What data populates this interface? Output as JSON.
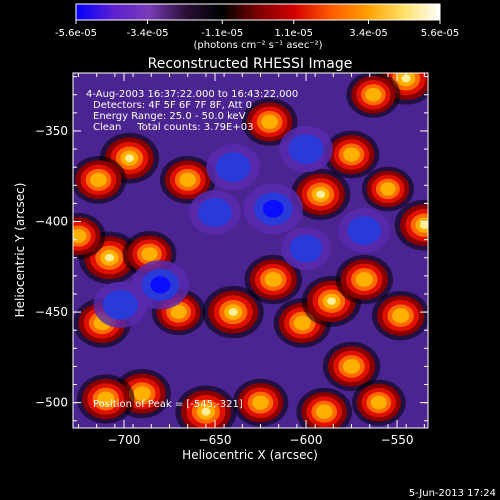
{
  "colorbar": {
    "tick_labels": [
      "-5.6e-05",
      "-3.4e-05",
      "-1.1e-05",
      "1.1e-05",
      "3.4e-05",
      "5.6e-05"
    ],
    "tick_values": [
      -5.6e-05,
      -3.4e-05,
      -1.1e-05,
      1.1e-05,
      3.4e-05,
      5.6e-05
    ],
    "range": [
      -5.6e-05,
      5.6e-05
    ],
    "units_label": "(photons cm⁻² s⁻¹ asec⁻²)",
    "colormap": [
      "#0000ff",
      "#5a1fd0",
      "#7a3cb8",
      "#2a1038",
      "#000000",
      "#7a0000",
      "#d40000",
      "#ff5a00",
      "#ff9e00",
      "#ffe066",
      "#ffffff"
    ]
  },
  "chart_data": {
    "type": "heatmap",
    "title": "Reconstructed RHESSI Image",
    "xlabel": "Heliocentric X (arcsec)",
    "ylabel": "Heliocentric Y (arcsec)",
    "xlim": [
      -728,
      -533
    ],
    "ylim": [
      -514,
      -318
    ],
    "x_ticks": [
      -700,
      -650,
      -600,
      -550
    ],
    "x_tick_labels": [
      "−700",
      "−650",
      "−600",
      "−550"
    ],
    "y_ticks": [
      -500,
      -450,
      -400,
      -350
    ],
    "y_tick_labels": [
      "−500",
      "−450",
      "−400",
      "−350"
    ],
    "annotations": [
      "4-Aug-2003 16:37:22.000 to 16:43:22.000",
      "Detectors: 4F 5F 6F 7F 8F, Att 0",
      "Energy Range: 25.0 - 50.0 keV",
      "Clean     Total counts: 3.79E+03"
    ],
    "peak_label": "Position of Peak = [-545,-321]",
    "peak_position": [
      -545,
      -321
    ],
    "sources": [
      {
        "x": -697,
        "y": -365,
        "intensity": 0.9
      },
      {
        "x": -714,
        "y": -377,
        "intensity": 0.7
      },
      {
        "x": -665,
        "y": -377,
        "intensity": 0.7
      },
      {
        "x": -708,
        "y": -420,
        "intensity": 1.0
      },
      {
        "x": -686,
        "y": -418,
        "intensity": 0.6
      },
      {
        "x": -725,
        "y": -408,
        "intensity": 0.6
      },
      {
        "x": -712,
        "y": -456,
        "intensity": 0.8
      },
      {
        "x": -670,
        "y": -450,
        "intensity": 0.6
      },
      {
        "x": -640,
        "y": -450,
        "intensity": 1.0
      },
      {
        "x": -618,
        "y": -432,
        "intensity": 0.8
      },
      {
        "x": -602,
        "y": -456,
        "intensity": 0.8
      },
      {
        "x": -586,
        "y": -444,
        "intensity": 0.9
      },
      {
        "x": -568,
        "y": -432,
        "intensity": 0.8
      },
      {
        "x": -548,
        "y": -452,
        "intensity": 0.8
      },
      {
        "x": -535,
        "y": -402,
        "intensity": 0.9
      },
      {
        "x": -555,
        "y": -382,
        "intensity": 0.5
      },
      {
        "x": -592,
        "y": -385,
        "intensity": 0.9
      },
      {
        "x": -575,
        "y": -363,
        "intensity": 0.7
      },
      {
        "x": -620,
        "y": -345,
        "intensity": 0.7
      },
      {
        "x": -545,
        "y": -321,
        "intensity": 1.0
      },
      {
        "x": -563,
        "y": -330,
        "intensity": 0.6
      },
      {
        "x": -575,
        "y": -480,
        "intensity": 0.8
      },
      {
        "x": -590,
        "y": -505,
        "intensity": 0.7
      },
      {
        "x": -625,
        "y": -500,
        "intensity": 0.7
      },
      {
        "x": -655,
        "y": -505,
        "intensity": 1.0
      },
      {
        "x": -690,
        "y": -495,
        "intensity": 0.8
      },
      {
        "x": -710,
        "y": -498,
        "intensity": 0.8
      },
      {
        "x": -560,
        "y": -500,
        "intensity": 0.6
      },
      {
        "x": -650,
        "y": -395,
        "intensity": -0.5
      },
      {
        "x": -640,
        "y": -370,
        "intensity": -0.6
      },
      {
        "x": -618,
        "y": -393,
        "intensity": -0.9
      },
      {
        "x": -600,
        "y": -360,
        "intensity": -0.6
      },
      {
        "x": -680,
        "y": -435,
        "intensity": -0.8
      },
      {
        "x": -702,
        "y": -446,
        "intensity": -0.6
      },
      {
        "x": -568,
        "y": -405,
        "intensity": -0.5
      },
      {
        "x": -600,
        "y": -415,
        "intensity": -0.4
      }
    ]
  },
  "footer": {
    "date_stamp": "5-Jun-2013 17:24"
  }
}
